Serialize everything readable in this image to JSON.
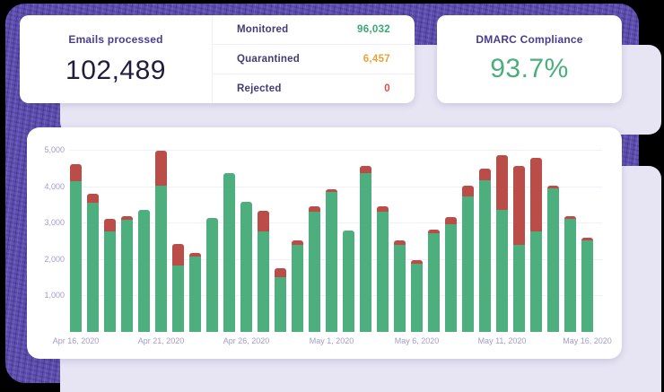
{
  "cards": {
    "emails": {
      "title": "Emails processed",
      "value": "102,489"
    },
    "stats": {
      "rows": [
        {
          "label": "Monitored",
          "value": "96,032"
        },
        {
          "label": "Quarantined",
          "value": "6,457"
        },
        {
          "label": "Rejected",
          "value": "0"
        }
      ]
    },
    "dmarc": {
      "title": "DMARC Compliance",
      "value": "93.7%"
    }
  },
  "colors": {
    "bar_green": "#4DAF7E",
    "bar_red": "#BA4D47",
    "value_green": "#3BA875",
    "value_orange": "#E8A23D",
    "value_red": "#D94F43",
    "title_purple": "#4A3D8F",
    "panel_purple": "#6152B5",
    "backdrop_lavender": "#E7E4F4",
    "axis_label": "#A29BCB"
  },
  "chart_data": {
    "type": "bar",
    "stacked": true,
    "title": "",
    "xlabel": "",
    "ylabel": "",
    "grid": true,
    "legend": "none",
    "ylim": [
      0,
      5600
    ],
    "y_ticks": [
      1000,
      2000,
      3000,
      4000,
      5000
    ],
    "y_tick_labels": [
      "1,000",
      "2,000",
      "3,000",
      "4,000",
      "5,000"
    ],
    "x": [
      "Apr 16, 2020",
      "Apr 17, 2020",
      "Apr 18, 2020",
      "Apr 19, 2020",
      "Apr 20, 2020",
      "Apr 21, 2020",
      "Apr 22, 2020",
      "Apr 23, 2020",
      "Apr 24, 2020",
      "Apr 25, 2020",
      "Apr 26, 2020",
      "Apr 27, 2020",
      "Apr 28, 2020",
      "Apr 29, 2020",
      "Apr 30, 2020",
      "May 1, 2020",
      "May 2, 2020",
      "May 3, 2020",
      "May 4, 2020",
      "May 5, 2020",
      "May 6, 2020",
      "May 7, 2020",
      "May 8, 2020",
      "May 9, 2020",
      "May 10, 2020",
      "May 11, 2020",
      "May 12, 2020",
      "May 13, 2020",
      "May 14, 2020",
      "May 15, 2020",
      "May 16, 2020"
    ],
    "x_tick_labels": [
      "Apr 16, 2020",
      "Apr 21, 2020",
      "Apr 26, 2020",
      "May 1, 2020",
      "May 6, 2020",
      "May 11, 2020",
      "May 16, 2020"
    ],
    "x_tick_positions": [
      0,
      5,
      10,
      15,
      20,
      25,
      30
    ],
    "series": [
      {
        "name": "green",
        "color": "#4DAF7E",
        "values": [
          4150,
          3550,
          2750,
          3080,
          3350,
          4020,
          1830,
          2070,
          3120,
          4350,
          3560,
          2760,
          1500,
          2390,
          3310,
          3840,
          2780,
          4360,
          3310,
          2390,
          1870,
          2700,
          2950,
          3730,
          4160,
          3340,
          2390,
          2760,
          3930,
          3110,
          2520
        ]
      },
      {
        "name": "red",
        "color": "#BA4D47",
        "values": [
          450,
          250,
          350,
          100,
          0,
          950,
          580,
          100,
          0,
          0,
          0,
          560,
          260,
          120,
          130,
          80,
          0,
          200,
          130,
          120,
          90,
          100,
          210,
          280,
          330,
          1510,
          2160,
          2030,
          80,
          60,
          60
        ]
      }
    ]
  }
}
